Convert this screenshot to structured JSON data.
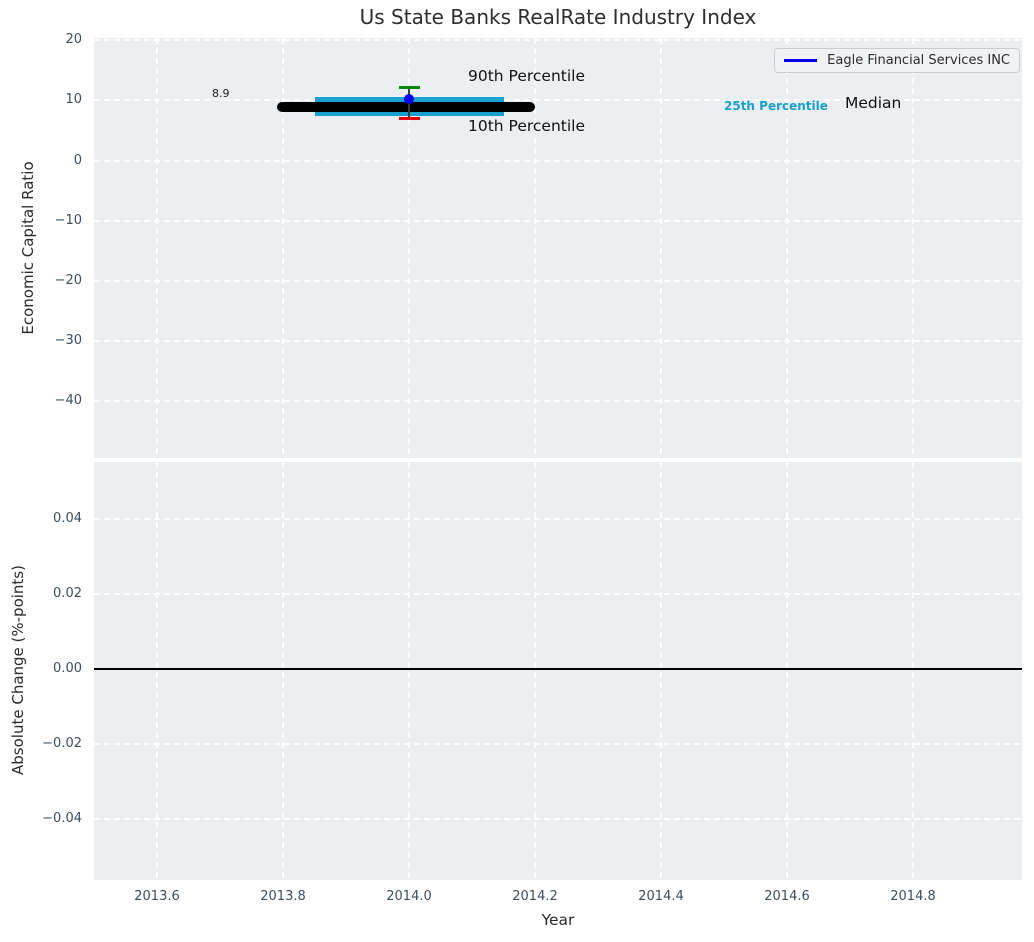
{
  "title": "Us State Banks RealRate Industry Index",
  "colors": {
    "axes_background": "#eceff1",
    "gridline": "#ffffff",
    "company_blue": "#0000ee",
    "percentile_band_cyan": "#18a0d0",
    "percentile_90_green": "#0a8a0a",
    "percentile_10_red": "#e60000",
    "median_black": "#000000",
    "tick_label": "#3d4e5f"
  },
  "chart_data": [
    {
      "type": "scatter",
      "title": "Us State Banks RealRate Industry Index",
      "ylabel": "Economic Capital Ratio",
      "xlabel": "Year",
      "grid": true,
      "legend_position": "upper right",
      "xlim": [
        2013.5,
        2014.973
      ],
      "ylim": [
        -49.4,
        20.33
      ],
      "xticks": [
        2013.6,
        2013.8,
        2014.0,
        2014.2,
        2014.4,
        2014.6,
        2014.8
      ],
      "xtick_labels": [
        "2013.6",
        "2013.8",
        "2014.0",
        "2014.2",
        "2014.4",
        "2014.6",
        "2014.8"
      ],
      "yticks": [
        20,
        10,
        0,
        -10,
        -20,
        -30,
        -40
      ],
      "ytick_labels": [
        "20",
        "10",
        "0",
        "−10",
        "−20",
        "−30",
        "−40"
      ],
      "series": [
        {
          "name": "Eagle Financial Services INC",
          "marker": "circle",
          "color": "#0000ee",
          "x": [
            2014.0
          ],
          "y": [
            10.2
          ]
        }
      ],
      "industry_stats": {
        "x": 2014.0,
        "median": 8.9,
        "median_value_label": "8.9",
        "median_line_span_x": [
          2013.79,
          2014.2
        ],
        "p25_band_center": 8.95,
        "p25_band_span_x": [
          2013.85,
          2014.15
        ],
        "p90": 12.1,
        "p10": 6.9
      },
      "labels": {
        "p90": "90th Percentile",
        "p10": "10th Percentile",
        "p25": "25th Percentile",
        "median": "Median",
        "median_value": "8.9"
      },
      "legend": {
        "label": "Eagle Financial Services INC"
      }
    },
    {
      "type": "line",
      "ylabel": "Absolute Change (%-points)",
      "xlabel": "Year",
      "grid": true,
      "xlim": [
        2013.5,
        2014.973
      ],
      "ylim": [
        -0.0563,
        0.0553
      ],
      "xticks": [
        2013.6,
        2013.8,
        2014.0,
        2014.2,
        2014.4,
        2014.6,
        2014.8
      ],
      "xtick_labels": [
        "2013.6",
        "2013.8",
        "2014.0",
        "2014.2",
        "2014.4",
        "2014.6",
        "2014.8"
      ],
      "yticks": [
        0.04,
        0.02,
        0,
        -0.02,
        -0.04
      ],
      "ytick_labels": [
        "0.04",
        "0.02",
        "0.00",
        "−0.02",
        "−0.04"
      ],
      "zero_line_y": 0.0,
      "series": []
    }
  ]
}
